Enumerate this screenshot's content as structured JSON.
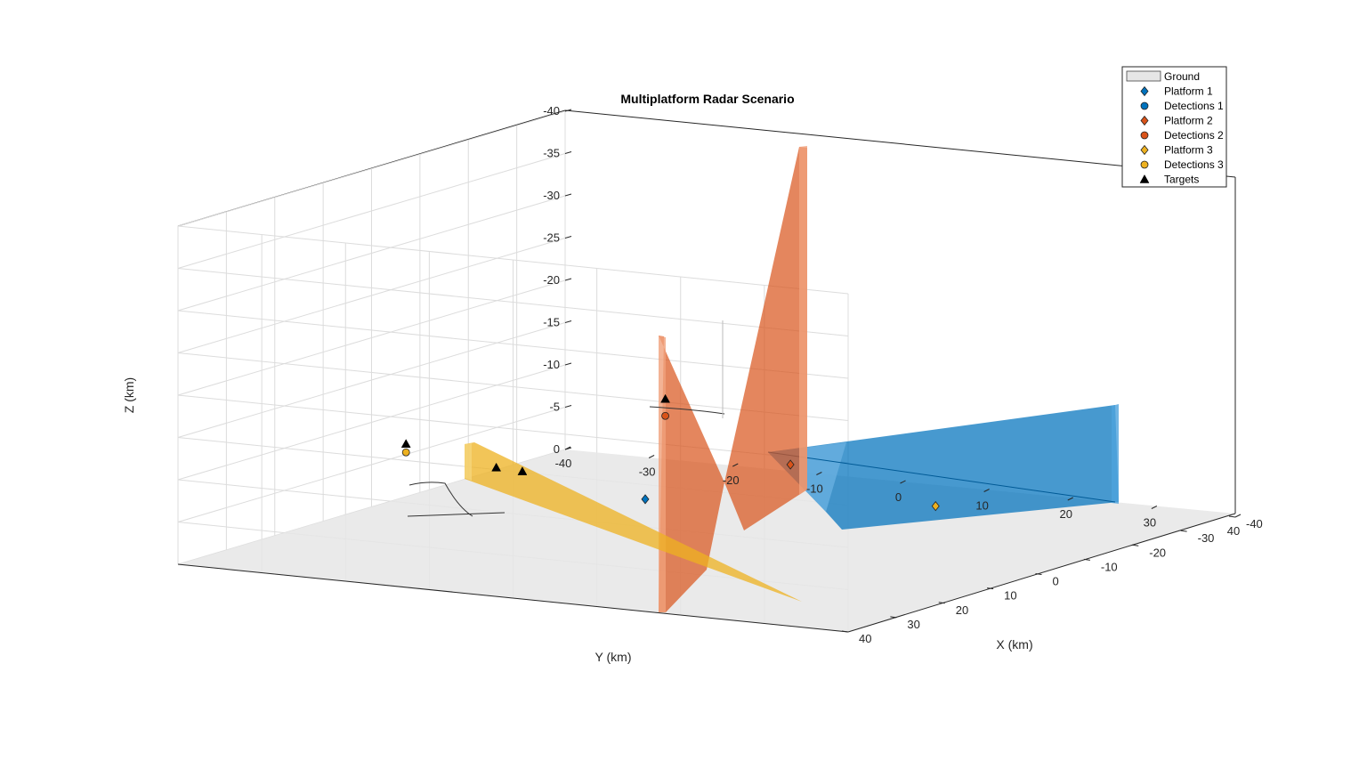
{
  "chart_data": {
    "type": "scatter",
    "title": "Multiplatform Radar Scenario",
    "xlabel": "X (km)",
    "ylabel": "Y (km)",
    "zlabel": "Z (km)",
    "xlim": [
      -40,
      40
    ],
    "ylim": [
      -40,
      40
    ],
    "zlim": [
      -40,
      0
    ],
    "z_direction": "reverse",
    "x_ticks": [
      "-40",
      "-30",
      "-20",
      "-10",
      "0",
      "10",
      "20",
      "30",
      "40"
    ],
    "y_ticks": [
      "-40",
      "-30",
      "-20",
      "-10",
      "0",
      "10",
      "20",
      "30",
      "40"
    ],
    "z_ticks": [
      "-40",
      "-35",
      "-30",
      "-25",
      "-20",
      "-15",
      "-10",
      "-5",
      "0"
    ],
    "grid": true,
    "legend_position": "top-right",
    "legend": [
      {
        "label": "Ground",
        "marker": "rect",
        "color": "#e6e6e6"
      },
      {
        "label": "Platform 1",
        "marker": "diamond",
        "color": "#0072BD"
      },
      {
        "label": "Detections 1",
        "marker": "circle",
        "color": "#0072BD"
      },
      {
        "label": "Platform 2",
        "marker": "diamond",
        "color": "#D95319"
      },
      {
        "label": "Detections 2",
        "marker": "circle",
        "color": "#D95319"
      },
      {
        "label": "Platform 3",
        "marker": "diamond",
        "color": "#EDB120"
      },
      {
        "label": "Detections 3",
        "marker": "circle",
        "color": "#EDB120"
      },
      {
        "label": "Targets",
        "marker": "triangle",
        "color": "#000000"
      }
    ],
    "series": [
      {
        "name": "Platform 1",
        "points": [
          {
            "x": 30,
            "y": 10,
            "z": -11
          }
        ]
      },
      {
        "name": "Platform 2",
        "points": [
          {
            "x": 0,
            "y": 10,
            "z": -10
          }
        ]
      },
      {
        "name": "Platform 3",
        "points": [
          {
            "x": -30,
            "y": 10,
            "z": 0
          }
        ]
      },
      {
        "name": "Detections 2",
        "points": [
          {
            "x": 12,
            "y": 2,
            "z": -17
          }
        ]
      },
      {
        "name": "Detections 3",
        "points": [
          {
            "x": 5,
            "y": -33,
            "z": -8
          }
        ]
      },
      {
        "name": "Targets",
        "points": [
          {
            "x": 12,
            "y": 2,
            "z": -19
          },
          {
            "x": 5,
            "y": -33,
            "z": -9
          },
          {
            "x": -5,
            "y": -28,
            "z": -5
          },
          {
            "x": 0,
            "y": -22,
            "z": -6
          }
        ]
      }
    ]
  }
}
